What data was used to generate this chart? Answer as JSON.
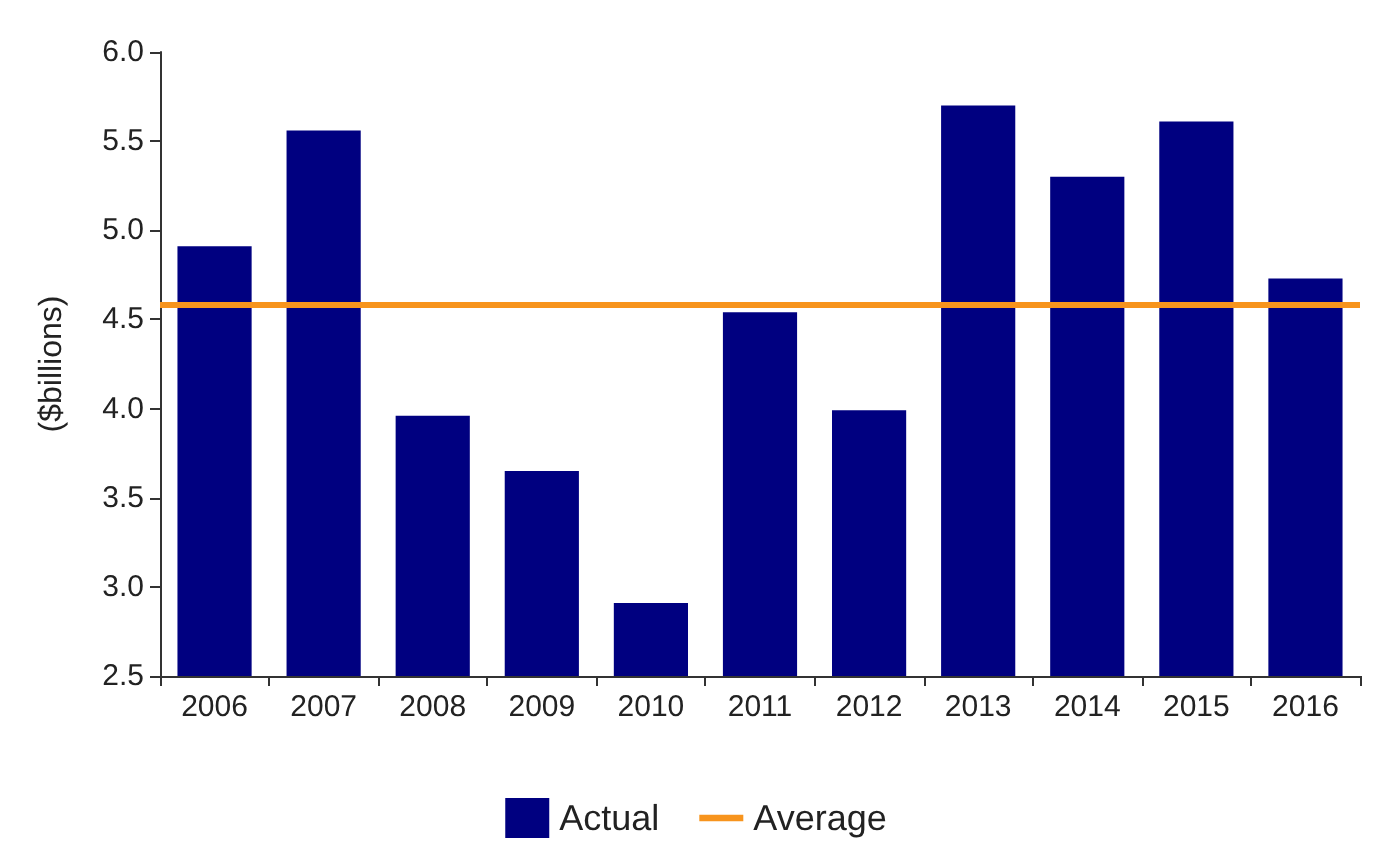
{
  "chart_data": {
    "type": "bar",
    "ylabel": "($billions)",
    "categories": [
      "2006",
      "2007",
      "2008",
      "2009",
      "2010",
      "2011",
      "2012",
      "2013",
      "2014",
      "2015",
      "2016"
    ],
    "series": [
      {
        "name": "Actual",
        "color": "#000080",
        "values": [
          4.91,
          5.56,
          3.96,
          3.65,
          2.91,
          4.54,
          3.99,
          5.7,
          5.3,
          5.61,
          4.73
        ]
      }
    ],
    "ref_lines": [
      {
        "axis": "y",
        "value": 4.58,
        "label": "Average",
        "color": "#f7941d"
      }
    ],
    "ylim": [
      2.5,
      6.0
    ],
    "yticks": [
      2.5,
      {
        "value": 3,
        "label": "3.0"
      },
      3.5,
      {
        "value": 4,
        "label": "4.0"
      },
      4.5,
      {
        "value": 5,
        "label": "5.0"
      },
      5.5,
      {
        "value": 6,
        "label": "6.0"
      }
    ],
    "grid": false,
    "legend": "bottom"
  }
}
